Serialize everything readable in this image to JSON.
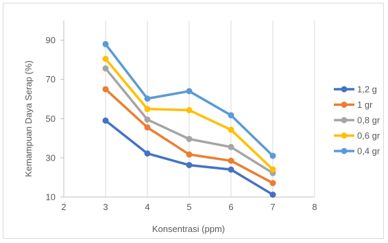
{
  "chart_data": {
    "type": "line",
    "title": "",
    "xlabel": "Konsentrasi (ppm)",
    "ylabel": "Kemampuan Daya Serap (%)",
    "xlim": [
      2,
      8
    ],
    "ylim": [
      10,
      100
    ],
    "xticks": [
      2,
      3,
      4,
      5,
      6,
      7,
      8
    ],
    "yticks": [
      10,
      30,
      50,
      70,
      90
    ],
    "grid": "vertical",
    "legend_position": "right",
    "x": [
      3,
      4,
      5,
      6,
      7
    ],
    "series": [
      {
        "name": "1,2 g",
        "color": "#4472c4",
        "values": [
          49,
          32.2,
          26.3,
          24,
          11.2
        ]
      },
      {
        "name": "1 gr",
        "color": "#ed7d31",
        "values": [
          65,
          45.5,
          31.7,
          28.5,
          17.1
        ]
      },
      {
        "name": "0,8 gr",
        "color": "#a5a5a5",
        "values": [
          75.6,
          49.5,
          39.6,
          35.5,
          22.2
        ]
      },
      {
        "name": "0,6 gr",
        "color": "#ffc000",
        "values": [
          80.5,
          54.9,
          54.3,
          44.3,
          24.1
        ]
      },
      {
        "name": "0,4 gr",
        "color": "#5b9bd5",
        "values": [
          88,
          60.2,
          64,
          51.7,
          31
        ]
      }
    ]
  }
}
